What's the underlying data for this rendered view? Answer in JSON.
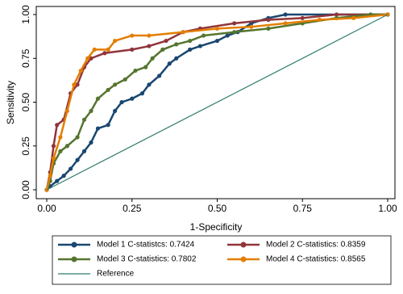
{
  "chart_data": {
    "type": "line",
    "xlabel": "1-Specificity",
    "ylabel": "Sensitivity",
    "xlim": [
      0,
      1
    ],
    "ylim": [
      0,
      1
    ],
    "xticks": [
      {
        "value": 0,
        "label": "0.00"
      },
      {
        "value": 0.25,
        "label": "0.25"
      },
      {
        "value": 0.5,
        "label": "0.50"
      },
      {
        "value": 0.75,
        "label": "0.75"
      },
      {
        "value": 1,
        "label": "1.00"
      }
    ],
    "yticks": [
      {
        "value": 0,
        "label": "0.00"
      },
      {
        "value": 0.25,
        "label": "0.25"
      },
      {
        "value": 0.5,
        "label": "0.50"
      },
      {
        "value": 0.75,
        "label": "0.75"
      },
      {
        "value": 1,
        "label": "1.00"
      }
    ],
    "grid": false,
    "series": [
      {
        "name": "Model 1 C-statistcs: 0.7424",
        "color": "#1a476f",
        "markers": true,
        "x": [
          0,
          0.01,
          0.03,
          0.05,
          0.07,
          0.09,
          0.11,
          0.13,
          0.15,
          0.18,
          0.2,
          0.22,
          0.25,
          0.28,
          0.3,
          0.33,
          0.36,
          0.38,
          0.42,
          0.45,
          0.5,
          0.53,
          0.56,
          0.6,
          0.65,
          0.7,
          1
        ],
        "values": [
          0,
          0.02,
          0.05,
          0.08,
          0.12,
          0.17,
          0.22,
          0.27,
          0.35,
          0.37,
          0.45,
          0.5,
          0.52,
          0.55,
          0.6,
          0.65,
          0.72,
          0.75,
          0.8,
          0.82,
          0.85,
          0.88,
          0.9,
          0.95,
          0.98,
          1,
          1
        ]
      },
      {
        "name": "Model 2 C-statistics: 0.8359",
        "color": "#90353b",
        "markers": true,
        "x": [
          0,
          0.01,
          0.02,
          0.03,
          0.05,
          0.07,
          0.09,
          0.11,
          0.13,
          0.17,
          0.25,
          0.3,
          0.35,
          0.4,
          0.45,
          0.55,
          0.65,
          0.75,
          0.85,
          1
        ],
        "values": [
          0,
          0.1,
          0.25,
          0.37,
          0.4,
          0.55,
          0.6,
          0.7,
          0.75,
          0.78,
          0.8,
          0.82,
          0.85,
          0.9,
          0.92,
          0.95,
          0.97,
          0.98,
          1,
          1
        ]
      },
      {
        "name": "Model 3 C-statistics: 0.7802",
        "color": "#55752f",
        "markers": true,
        "x": [
          0,
          0.01,
          0.02,
          0.04,
          0.06,
          0.09,
          0.11,
          0.13,
          0.15,
          0.18,
          0.2,
          0.23,
          0.26,
          0.29,
          0.31,
          0.34,
          0.38,
          0.42,
          0.46,
          0.55,
          0.65,
          0.75,
          0.85,
          0.95,
          1
        ],
        "values": [
          0,
          0.05,
          0.15,
          0.22,
          0.25,
          0.3,
          0.4,
          0.45,
          0.52,
          0.57,
          0.6,
          0.63,
          0.68,
          0.7,
          0.75,
          0.8,
          0.83,
          0.85,
          0.88,
          0.9,
          0.92,
          0.95,
          0.98,
          1,
          1
        ]
      },
      {
        "name": "Model 4 C-statistics: 0.8565",
        "color": "#e37e00",
        "markers": true,
        "x": [
          0,
          0.01,
          0.02,
          0.04,
          0.06,
          0.08,
          0.1,
          0.12,
          0.14,
          0.18,
          0.2,
          0.25,
          0.3,
          0.4,
          0.5,
          0.6,
          0.7,
          0.8,
          0.9,
          1
        ],
        "values": [
          0,
          0.08,
          0.18,
          0.3,
          0.45,
          0.6,
          0.68,
          0.75,
          0.8,
          0.8,
          0.85,
          0.88,
          0.88,
          0.9,
          0.92,
          0.93,
          0.95,
          0.97,
          0.98,
          1
        ]
      },
      {
        "name": "Reference",
        "color": "#2e7d6f",
        "markers": false,
        "x": [
          0,
          1
        ],
        "values": [
          0,
          1
        ]
      }
    ]
  }
}
